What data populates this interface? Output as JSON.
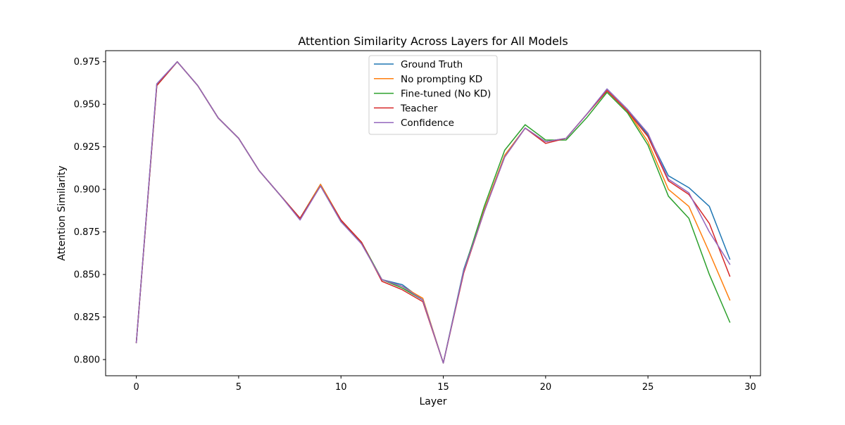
{
  "chart_data": {
    "type": "line",
    "title": "Attention Similarity Across Layers for All Models",
    "xlabel": "Layer",
    "ylabel": "Attention Similarity",
    "xlim": [
      -1.5,
      30.5
    ],
    "ylim": [
      0.7905,
      0.9815
    ],
    "xticks": [
      0,
      5,
      10,
      15,
      20,
      25,
      30
    ],
    "yticks": [
      0.8,
      0.825,
      0.85,
      0.875,
      0.9,
      0.925,
      0.95,
      0.975
    ],
    "ytick_labels": [
      "0.800",
      "0.825",
      "0.850",
      "0.875",
      "0.900",
      "0.925",
      "0.950",
      "0.975"
    ],
    "grid": false,
    "legend_position": "upper-center",
    "x": [
      0,
      1,
      2,
      3,
      4,
      5,
      6,
      7,
      8,
      9,
      10,
      11,
      12,
      13,
      14,
      15,
      16,
      17,
      18,
      19,
      20,
      21,
      22,
      23,
      24,
      25,
      26,
      27,
      28,
      29
    ],
    "series": [
      {
        "name": "Ground Truth",
        "color": "#1f77b4",
        "values": [
          0.81,
          0.962,
          0.975,
          0.961,
          0.942,
          0.93,
          0.911,
          0.897,
          0.883,
          0.903,
          0.882,
          0.869,
          0.847,
          0.844,
          0.835,
          0.798,
          0.853,
          0.888,
          0.92,
          0.936,
          0.928,
          0.93,
          0.944,
          0.959,
          0.947,
          0.932,
          0.908,
          0.901,
          0.89,
          0.859
        ]
      },
      {
        "name": "No prompting KD",
        "color": "#ff7f0e",
        "values": [
          0.81,
          0.961,
          0.975,
          0.961,
          0.942,
          0.93,
          0.911,
          0.897,
          0.883,
          0.903,
          0.882,
          0.869,
          0.847,
          0.843,
          0.836,
          0.798,
          0.852,
          0.888,
          0.92,
          0.936,
          0.928,
          0.93,
          0.944,
          0.958,
          0.946,
          0.928,
          0.9,
          0.89,
          0.863,
          0.835
        ]
      },
      {
        "name": "Fine-tuned (No KD)",
        "color": "#2ca02c",
        "values": [
          0.81,
          0.961,
          0.975,
          0.961,
          0.942,
          0.93,
          0.911,
          0.897,
          0.883,
          0.902,
          0.881,
          0.869,
          0.847,
          0.842,
          0.835,
          0.798,
          0.852,
          0.89,
          0.923,
          0.938,
          0.929,
          0.929,
          0.942,
          0.957,
          0.945,
          0.926,
          0.896,
          0.883,
          0.85,
          0.822
        ]
      },
      {
        "name": "Teacher",
        "color": "#d62728",
        "values": [
          0.81,
          0.961,
          0.975,
          0.961,
          0.942,
          0.93,
          0.911,
          0.897,
          0.883,
          0.902,
          0.882,
          0.869,
          0.846,
          0.841,
          0.834,
          0.798,
          0.851,
          0.887,
          0.919,
          0.936,
          0.927,
          0.93,
          0.944,
          0.958,
          0.946,
          0.931,
          0.905,
          0.897,
          0.88,
          0.849
        ]
      },
      {
        "name": "Confidence",
        "color": "#9467bd",
        "values": [
          0.81,
          0.962,
          0.975,
          0.961,
          0.942,
          0.93,
          0.911,
          0.897,
          0.882,
          0.902,
          0.881,
          0.868,
          0.847,
          0.843,
          0.835,
          0.798,
          0.852,
          0.887,
          0.919,
          0.936,
          0.928,
          0.93,
          0.944,
          0.959,
          0.947,
          0.933,
          0.906,
          0.898,
          0.875,
          0.856
        ]
      }
    ]
  }
}
